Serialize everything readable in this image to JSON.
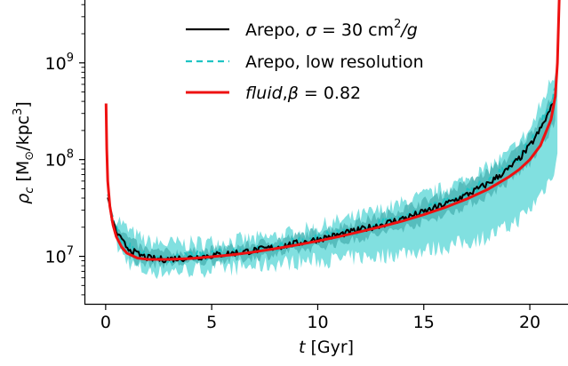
{
  "chart_data": {
    "type": "line",
    "xlabel": {
      "var": "t",
      "unit": "[Gyr]"
    },
    "ylabel": {
      "var": "ρ",
      "sub": "c",
      "unit_pre": "[M",
      "unit_sub": "⊙",
      "unit_mid": "/kpc",
      "unit_sup": "3",
      "unit_post": "]"
    },
    "xlim": [
      -1,
      21.8
    ],
    "ylim_log10": [
      6.5,
      9.65
    ],
    "y_scale": "log",
    "x_ticks": [
      0,
      5,
      10,
      15,
      20
    ],
    "x_tick_labels": [
      "0",
      "5",
      "10",
      "15",
      "20"
    ],
    "y_ticks_log10": [
      7,
      8,
      9
    ],
    "y_tick_labels": [
      {
        "base": "10",
        "exp": "7"
      },
      {
        "base": "10",
        "exp": "8"
      },
      {
        "base": "10",
        "exp": "9"
      }
    ],
    "grid": false,
    "legend": {
      "placement": "top-center",
      "entries": [
        {
          "prefix": "Arepo, ",
          "sym": "σ",
          "eq": " = 30 cm",
          "sup": "2",
          "post": "/g"
        },
        {
          "text": "Arepo, low resolution"
        },
        {
          "italic": "fluid",
          "comma": ",",
          "sym": "β",
          "eq": " = 0.82"
        }
      ]
    },
    "colors": {
      "arepo": "#000000",
      "low_res": "#1ec4c4",
      "band_outer": "#7adede",
      "band_inner": "#4fb6b6",
      "fluid": "#ee1111"
    },
    "series": [
      {
        "name": "Arepo, σ = 30 cm²/g",
        "style": "solid",
        "x": [
          0.1,
          0.25,
          0.5,
          0.75,
          1,
          1.5,
          2,
          2.5,
          3,
          4,
          5,
          6,
          7,
          8,
          9,
          10,
          11,
          12,
          13,
          14,
          15,
          16,
          17,
          18,
          19,
          19.5,
          20,
          20.5,
          21,
          21.2
        ],
        "y": [
          42000000.0,
          26000000.0,
          18000000.0,
          14500000.0,
          12500000.0,
          10500000.0,
          9600000.0,
          9300000.0,
          9400000.0,
          9700000.0,
          10200000.0,
          10800000.0,
          11500000.0,
          12400000.0,
          13600000.0,
          15000000.0,
          16700000.0,
          18800000.0,
          21300000.0,
          24500000.0,
          28700000.0,
          34500000.0,
          43000000.0,
          56000000.0,
          80000000.0,
          102000000.0,
          138000000.0,
          205000000.0,
          340000000.0,
          450000000.0
        ]
      },
      {
        "name": "Arepo, low resolution",
        "style": "dashed",
        "x": [
          0.1,
          0.25,
          0.5,
          0.75,
          1,
          1.5,
          2,
          2.5,
          3,
          4,
          5,
          6,
          7,
          8,
          9,
          10,
          11,
          12,
          13,
          14,
          15,
          16,
          17,
          18,
          19,
          19.5,
          20,
          20.5,
          21,
          21.2
        ],
        "y": [
          45000000.0,
          28000000.0,
          19000000.0,
          15000000.0,
          13000000.0,
          10800000.0,
          9800000.0,
          9500000.0,
          9600000.0,
          9900000.0,
          10400000.0,
          11000000.0,
          11700000.0,
          12700000.0,
          13900000.0,
          15300000.0,
          17000000.0,
          19200000.0,
          21800000.0,
          25000000.0,
          29500000.0,
          35500000.0,
          44500000.0,
          58000000.0,
          84000000.0,
          108000000.0,
          148000000.0,
          225000000.0,
          380000000.0,
          520000000.0
        ]
      },
      {
        "name": "fluid, β = 0.82",
        "style": "solid",
        "x": [
          0.02,
          0.05,
          0.1,
          0.2,
          0.35,
          0.5,
          0.75,
          1,
          1.5,
          2,
          3,
          4,
          5,
          6,
          7,
          8,
          9,
          10,
          11,
          12,
          13,
          14,
          15,
          16,
          17,
          18,
          19,
          19.5,
          20,
          20.5,
          21,
          21.2,
          21.3,
          21.4
        ],
        "y": [
          380000000.0,
          130000000.0,
          60000000.0,
          33000000.0,
          21000000.0,
          16000000.0,
          12500000.0,
          10800000.0,
          9600000.0,
          9300000.0,
          9300000.0,
          9500000.0,
          9900000.0,
          10400000.0,
          11100000.0,
          12000000.0,
          13100000.0,
          14400000.0,
          16000000.0,
          18000000.0,
          20300000.0,
          23200000.0,
          27000000.0,
          32000000.0,
          39000000.0,
          49000000.0,
          66000000.0,
          79000000.0,
          100000000.0,
          140000000.0,
          260000000.0,
          450000000.0,
          1000000000.0,
          6000000000.0
        ]
      }
    ],
    "bands": [
      {
        "name": "outer",
        "x": [
          0.5,
          1,
          1.5,
          2,
          3,
          4,
          5,
          6,
          7,
          8,
          9,
          10,
          11,
          12,
          13,
          14,
          15,
          16,
          17,
          18,
          19,
          20,
          21,
          21.3
        ],
        "low": [
          13000000.0,
          9000000.0,
          7500000.0,
          7000000.0,
          7000000.0,
          7200000.0,
          7400000.0,
          7600000.0,
          7900000.0,
          8300000.0,
          8800000.0,
          9000000.0,
          9300000.0,
          9800000.0,
          10000000.0,
          11000000.0,
          11500000.0,
          12500000.0,
          14000000.0,
          16000000.0,
          20000000.0,
          30000000.0,
          65000000.0,
          110000000.0
        ],
        "high": [
          26000000.0,
          19000000.0,
          16000000.0,
          14000000.0,
          13500000.0,
          13500000.0,
          14000000.0,
          14500000.0,
          15000000.0,
          16000000.0,
          17500000.0,
          20000000.0,
          23000000.0,
          26000000.0,
          30000000.0,
          35000000.0,
          42000000.0,
          50000000.0,
          62000000.0,
          80000000.0,
          115000000.0,
          200000000.0,
          650000000.0,
          900000000.0
        ]
      },
      {
        "name": "inner",
        "x": [
          0.5,
          1,
          1.5,
          2,
          3,
          4,
          5,
          6,
          7,
          8,
          9,
          10,
          11,
          12,
          13,
          14,
          15,
          16,
          17,
          18,
          19,
          20,
          21,
          21.2
        ],
        "low": [
          15000000.0,
          10500000.0,
          8600000.0,
          8200000.0,
          8300000.0,
          8500000.0,
          8800000.0,
          9200000.0,
          9700000.0,
          10400000.0,
          11300000.0,
          12400000.0,
          13700000.0,
          15300000.0,
          17200000.0,
          19600000.0,
          22700000.0,
          27000000.0,
          33000000.0,
          42000000.0,
          58000000.0,
          90000000.0,
          200000000.0,
          260000000.0
        ],
        "high": [
          22000000.0,
          16000000.0,
          13000000.0,
          11500000.0,
          11000000.0,
          11200000.0,
          11700000.0,
          12500000.0,
          13400000.0,
          14600000.0,
          16200000.0,
          18200000.0,
          20500000.0,
          23200000.0,
          26500000.0,
          31000000.0,
          37000000.0,
          45000000.0,
          57000000.0,
          75000000.0,
          105000000.0,
          180000000.0,
          420000000.0,
          520000000.0
        ]
      }
    ]
  }
}
